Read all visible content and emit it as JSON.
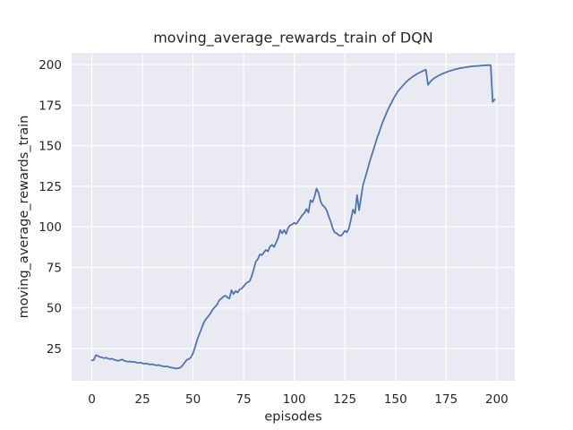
{
  "chart_data": {
    "type": "line",
    "title": "moving_average_rewards_train of DQN",
    "xlabel": "episodes",
    "ylabel": "moving_average_rewards_train",
    "x_ticks": [
      0,
      25,
      50,
      75,
      100,
      125,
      150,
      175,
      200
    ],
    "y_ticks": [
      25,
      50,
      75,
      100,
      125,
      150,
      175,
      200
    ],
    "xlim": [
      -9.95,
      208.9
    ],
    "ylim": [
      5.1,
      207.3
    ],
    "grid": true,
    "legend": false,
    "colors": {
      "line": "#4C72B0",
      "plot_background": "#EAEAF2",
      "grid": "#FFFFFF",
      "text": "#262626",
      "figure_background": "#FFFFFF"
    },
    "series": [
      {
        "name": "moving_average_rewards_train",
        "x_start": 0,
        "x_step": 1,
        "values": [
          17.6,
          17.9,
          20.9,
          20.4,
          19.8,
          19.4,
          19.0,
          19.3,
          18.8,
          18.4,
          18.7,
          18.1,
          17.7,
          17.4,
          17.8,
          18.2,
          17.5,
          17.1,
          16.8,
          17.0,
          16.6,
          16.8,
          16.3,
          16.1,
          16.3,
          15.8,
          15.6,
          15.8,
          15.3,
          15.1,
          15.3,
          14.8,
          14.6,
          14.8,
          14.3,
          14.1,
          13.8,
          14.0,
          13.6,
          13.3,
          13.1,
          12.8,
          12.6,
          12.9,
          13.4,
          14.9,
          16.5,
          18.0,
          18.5,
          19.5,
          22.0,
          26.0,
          30.0,
          33.5,
          36.5,
          40.0,
          42.5,
          44.0,
          45.6,
          47.5,
          49.5,
          50.8,
          52.2,
          54.8,
          55.8,
          57.0,
          57.6,
          56.5,
          55.8,
          60.9,
          58.5,
          60.4,
          59.5,
          61.3,
          62.0,
          63.3,
          64.8,
          65.9,
          66.5,
          69.6,
          74.0,
          78.5,
          80.2,
          83.0,
          82.6,
          84.3,
          85.8,
          84.9,
          87.8,
          88.9,
          87.6,
          90.2,
          93.0,
          98.0,
          96.0,
          98.0,
          95.7,
          99.5,
          101.0,
          101.5,
          102.5,
          101.8,
          103.6,
          105.4,
          107.3,
          108.6,
          111.0,
          108.8,
          116.4,
          115.2,
          118.6,
          123.6,
          121.0,
          115.6,
          113.2,
          112.2,
          110.2,
          106.6,
          103.2,
          99.0,
          96.5,
          96.0,
          94.8,
          94.4,
          95.8,
          97.6,
          96.6,
          99.2,
          104.6,
          110.6,
          108.2,
          119.6,
          110.2,
          118.2,
          126.2,
          130.2,
          134.6,
          139.2,
          143.2,
          147.2,
          151.2,
          155.2,
          158.6,
          162.2,
          165.6,
          168.6,
          171.6,
          174.2,
          176.6,
          179.0,
          181.2,
          183.2,
          184.8,
          186.2,
          187.6,
          189.0,
          190.2,
          191.2,
          192.2,
          193.0,
          193.8,
          194.6,
          195.2,
          195.8,
          196.4,
          196.9,
          187.5,
          189.2,
          190.6,
          191.6,
          192.4,
          193.1,
          193.7,
          194.3,
          194.8,
          195.3,
          195.8,
          196.2,
          196.6,
          197.0,
          197.3,
          197.6,
          197.9,
          198.1,
          198.3,
          198.5,
          198.7,
          198.9,
          199.0,
          199.1,
          199.2,
          199.3,
          199.4,
          199.5,
          199.6,
          199.6,
          199.7,
          199.7,
          177.0,
          178.6
        ]
      }
    ]
  }
}
